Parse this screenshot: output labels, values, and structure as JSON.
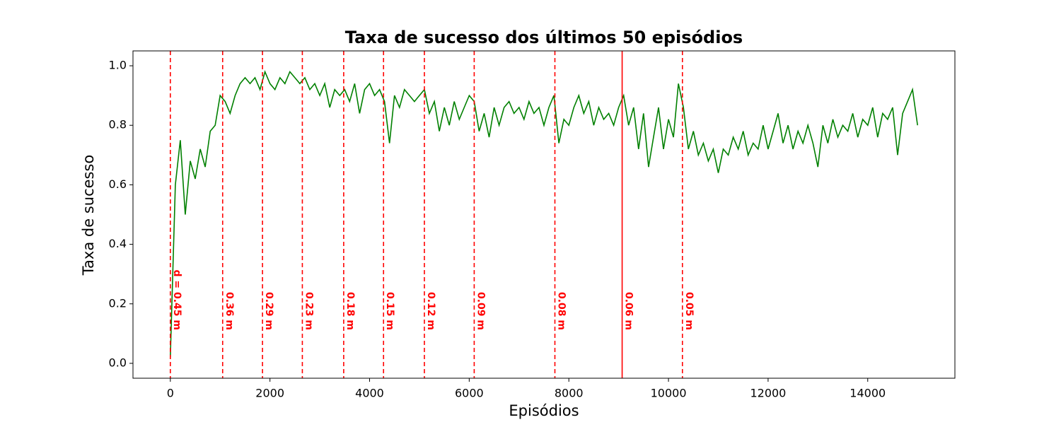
{
  "chart_data": {
    "type": "line",
    "title": "Taxa de sucesso dos últimos 50 episódios",
    "xlabel": "Episódios",
    "ylabel": "Taxa de sucesso",
    "x": [
      0,
      100,
      200,
      300,
      400,
      500,
      600,
      700,
      800,
      900,
      1000,
      1100,
      1200,
      1300,
      1400,
      1500,
      1600,
      1700,
      1800,
      1900,
      2000,
      2100,
      2200,
      2300,
      2400,
      2500,
      2600,
      2700,
      2800,
      2900,
      3000,
      3100,
      3200,
      3300,
      3400,
      3500,
      3600,
      3700,
      3800,
      3900,
      4000,
      4100,
      4200,
      4300,
      4400,
      4500,
      4600,
      4700,
      4800,
      4900,
      5000,
      5100,
      5200,
      5300,
      5400,
      5500,
      5600,
      5700,
      5800,
      5900,
      6000,
      6100,
      6200,
      6300,
      6400,
      6500,
      6600,
      6700,
      6800,
      6900,
      7000,
      7100,
      7200,
      7300,
      7400,
      7500,
      7600,
      7700,
      7800,
      7900,
      8000,
      8100,
      8200,
      8300,
      8400,
      8500,
      8600,
      8700,
      8800,
      8900,
      9000,
      9100,
      9200,
      9300,
      9400,
      9500,
      9600,
      9700,
      9800,
      9900,
      10000,
      10100,
      10200,
      10300,
      10400,
      10500,
      10600,
      10700,
      10800,
      10900,
      11000,
      11100,
      11200,
      11300,
      11400,
      11500,
      11600,
      11700,
      11800,
      11900,
      12000,
      12100,
      12200,
      12300,
      12400,
      12500,
      12600,
      12700,
      12800,
      12900,
      13000,
      13100,
      13200,
      13300,
      13400,
      13500,
      13600,
      13700,
      13800,
      13900,
      14000,
      14100,
      14200,
      14300,
      14400,
      14500,
      14600,
      14700,
      14800,
      14900,
      15000
    ],
    "series": [
      {
        "color": "#008000",
        "values": [
          0.02,
          0.6,
          0.75,
          0.5,
          0.68,
          0.62,
          0.72,
          0.66,
          0.78,
          0.8,
          0.9,
          0.88,
          0.84,
          0.9,
          0.94,
          0.96,
          0.94,
          0.96,
          0.92,
          0.98,
          0.94,
          0.92,
          0.96,
          0.94,
          0.98,
          0.96,
          0.94,
          0.96,
          0.92,
          0.94,
          0.9,
          0.94,
          0.86,
          0.92,
          0.9,
          0.92,
          0.88,
          0.94,
          0.84,
          0.92,
          0.94,
          0.9,
          0.92,
          0.88,
          0.74,
          0.9,
          0.86,
          0.92,
          0.9,
          0.88,
          0.9,
          0.92,
          0.84,
          0.88,
          0.78,
          0.86,
          0.8,
          0.88,
          0.82,
          0.86,
          0.9,
          0.88,
          0.78,
          0.84,
          0.76,
          0.86,
          0.8,
          0.86,
          0.88,
          0.84,
          0.86,
          0.82,
          0.88,
          0.84,
          0.86,
          0.8,
          0.86,
          0.9,
          0.74,
          0.82,
          0.8,
          0.86,
          0.9,
          0.84,
          0.88,
          0.8,
          0.86,
          0.82,
          0.84,
          0.8,
          0.86,
          0.9,
          0.8,
          0.86,
          0.72,
          0.84,
          0.66,
          0.76,
          0.86,
          0.72,
          0.82,
          0.76,
          0.94,
          0.86,
          0.72,
          0.78,
          0.7,
          0.74,
          0.68,
          0.72,
          0.64,
          0.72,
          0.7,
          0.76,
          0.72,
          0.78,
          0.7,
          0.74,
          0.72,
          0.8,
          0.72,
          0.78,
          0.84,
          0.74,
          0.8,
          0.72,
          0.78,
          0.74,
          0.8,
          0.74,
          0.66,
          0.8,
          0.74,
          0.82,
          0.76,
          0.8,
          0.78,
          0.84,
          0.76,
          0.82,
          0.8,
          0.86,
          0.76,
          0.84,
          0.82,
          0.86,
          0.7,
          0.84,
          0.88,
          0.92,
          0.8
        ]
      }
    ],
    "vlines": [
      {
        "x": 0,
        "label": "d = 0.45 m",
        "style": "dashed"
      },
      {
        "x": 1050,
        "label": "0.36 m",
        "style": "dashed"
      },
      {
        "x": 1850,
        "label": "0.29 m",
        "style": "dashed"
      },
      {
        "x": 2650,
        "label": "0.23 m",
        "style": "dashed"
      },
      {
        "x": 3480,
        "label": "0.18 m",
        "style": "dashed"
      },
      {
        "x": 4280,
        "label": "0.15 m",
        "style": "dashed"
      },
      {
        "x": 5100,
        "label": "0.12 m",
        "style": "dashed"
      },
      {
        "x": 6100,
        "label": "0.09 m",
        "style": "dashed"
      },
      {
        "x": 7720,
        "label": "0.08 m",
        "style": "dashed"
      },
      {
        "x": 9070,
        "label": "0.06 m",
        "style": "solid"
      },
      {
        "x": 10280,
        "label": "0.05 m",
        "style": "dashed"
      }
    ],
    "vline_color": "#ff0000",
    "xlim": [
      -750,
      15750
    ],
    "ylim": [
      -0.05,
      1.05
    ],
    "xticks": [
      0,
      2000,
      4000,
      6000,
      8000,
      10000,
      12000,
      14000
    ],
    "yticks": [
      {
        "value": 0.0,
        "label": "0.0"
      },
      0.2,
      0.4,
      0.6,
      0.8,
      {
        "value": 1.0,
        "label": "1.0"
      }
    ]
  }
}
